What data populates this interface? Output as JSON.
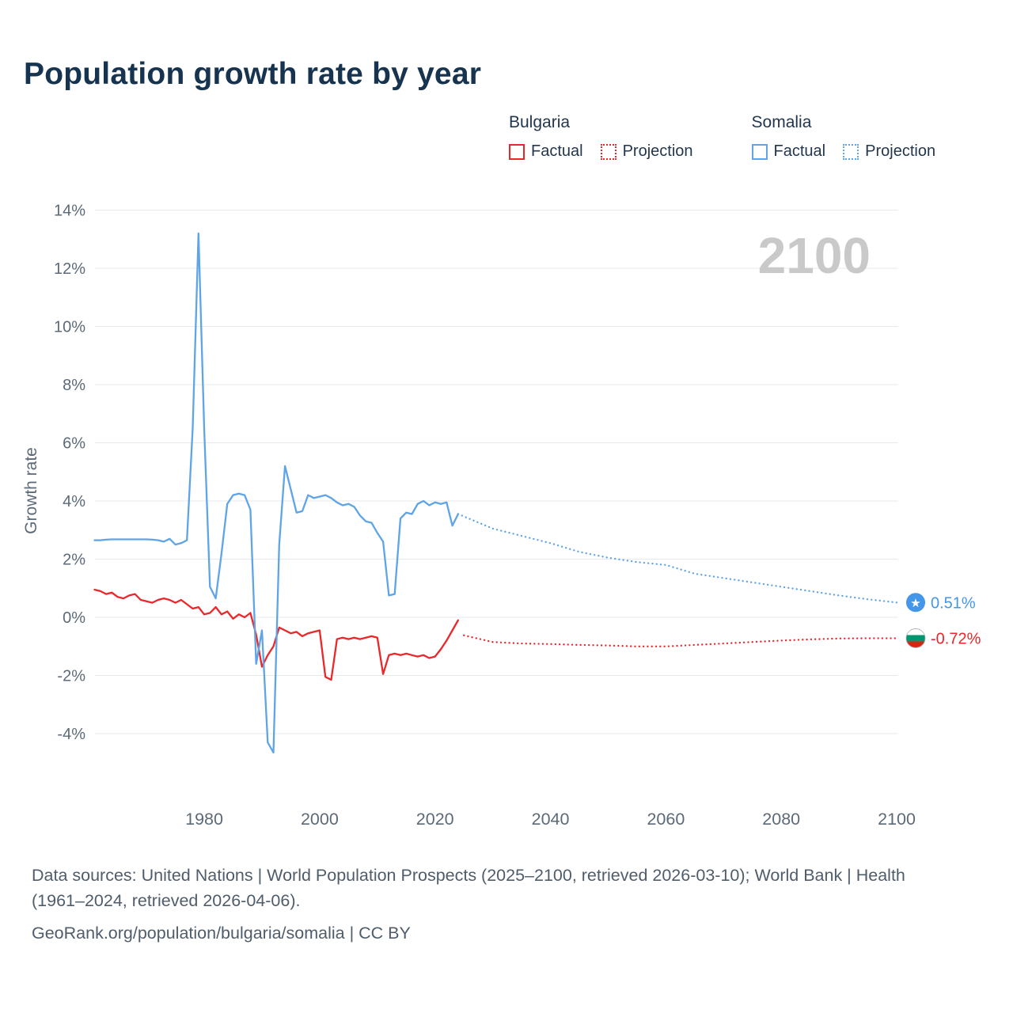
{
  "title": "Population growth rate by year",
  "watermark": "2100",
  "legend": {
    "groups": [
      {
        "label": "Bulgaria",
        "color": "#ea272a",
        "items": [
          {
            "label": "Factual",
            "style": "solid"
          },
          {
            "label": "Projection",
            "style": "dotted"
          }
        ]
      },
      {
        "label": "Somalia",
        "color": "#5ea4e6",
        "items": [
          {
            "label": "Factual",
            "style": "solid"
          },
          {
            "label": "Projection",
            "style": "dotted"
          }
        ]
      }
    ]
  },
  "end_markers": [
    {
      "name": "somalia",
      "label": "0.51%",
      "value": 0.51,
      "label_color": "#4496e8",
      "flag_type": "star",
      "flag_bg": "#4496e8",
      "star_color": "#ffffff"
    },
    {
      "name": "bulgaria",
      "label": "-0.72%",
      "value": -0.72,
      "label_color": "#ea272a",
      "flag_type": "stripes",
      "stripes": [
        "#ffffff",
        "#00966e",
        "#d62612"
      ]
    }
  ],
  "footer": {
    "sources": "Data sources: United Nations | World Population Prospects (2025–2100, retrieved 2026-03-10); World Bank | Health (1961–2024, retrieved 2026-04-06).",
    "attribution": "GeoRank.org/population/bulgaria/somalia | CC BY"
  },
  "chart_data": {
    "type": "line",
    "title": "Population growth rate by year",
    "xlabel": "",
    "ylabel": "Growth rate",
    "xlim": [
      1961,
      2113
    ],
    "ylim": [
      -5.5,
      14.5
    ],
    "grid": "horizontal",
    "legend_position": "top-right",
    "xticks": [
      1980,
      2000,
      2020,
      2040,
      2060,
      2080,
      2100
    ],
    "xtick_labels": [
      "1980",
      "2000",
      "2020",
      "2040",
      "2060",
      "2080",
      "2100"
    ],
    "yticks": [
      -4,
      -2,
      0,
      2,
      4,
      6,
      8,
      10,
      12,
      14
    ],
    "ytick_labels": [
      "-4%",
      "-2%",
      "0%",
      "2%",
      "4%",
      "6%",
      "8%",
      "10%",
      "12%",
      "14%"
    ],
    "series": [
      {
        "name": "Bulgaria Factual",
        "color": "#ea272a",
        "dash": "solid",
        "start_year": 1961,
        "values": [
          0.95,
          0.9,
          0.8,
          0.85,
          0.7,
          0.65,
          0.75,
          0.8,
          0.6,
          0.55,
          0.5,
          0.6,
          0.65,
          0.6,
          0.5,
          0.6,
          0.45,
          0.3,
          0.35,
          0.1,
          0.15,
          0.35,
          0.1,
          0.2,
          -0.05,
          0.1,
          0.0,
          0.15,
          -0.6,
          -1.7,
          -1.3,
          -1.0,
          -0.35,
          -0.45,
          -0.55,
          -0.5,
          -0.65,
          -0.55,
          -0.5,
          -0.45,
          -2.05,
          -2.15,
          -0.75,
          -0.7,
          -0.75,
          -0.7,
          -0.75,
          -0.7,
          -0.65,
          -0.7,
          -1.95,
          -1.3,
          -1.25,
          -1.3,
          -1.25,
          -1.3,
          -1.35,
          -1.3,
          -1.4,
          -1.35,
          -1.1,
          -0.8,
          -0.45,
          -0.1
        ]
      },
      {
        "name": "Bulgaria Projection",
        "color": "#ea272a",
        "dash": "dotted",
        "x": [
          2025,
          2030,
          2035,
          2040,
          2045,
          2050,
          2055,
          2060,
          2065,
          2070,
          2075,
          2080,
          2085,
          2090,
          2095,
          2100
        ],
        "values": [
          -0.62,
          -0.85,
          -0.9,
          -0.92,
          -0.95,
          -0.97,
          -1.0,
          -1.0,
          -0.95,
          -0.9,
          -0.85,
          -0.8,
          -0.76,
          -0.73,
          -0.72,
          -0.72
        ]
      },
      {
        "name": "Somalia Factual",
        "color": "#5ea4e6",
        "dash": "solid",
        "start_year": 1961,
        "values": [
          2.65,
          2.65,
          2.67,
          2.68,
          2.68,
          2.68,
          2.68,
          2.68,
          2.68,
          2.68,
          2.67,
          2.65,
          2.6,
          2.7,
          2.5,
          2.55,
          2.65,
          6.5,
          13.2,
          6.5,
          1.05,
          0.65,
          2.2,
          3.9,
          4.2,
          4.25,
          4.2,
          3.7,
          -1.6,
          -0.45,
          -4.3,
          -4.65,
          2.5,
          5.2,
          4.4,
          3.6,
          3.65,
          4.2,
          4.1,
          4.15,
          4.2,
          4.1,
          3.95,
          3.85,
          3.9,
          3.8,
          3.5,
          3.3,
          3.25,
          2.9,
          2.6,
          0.75,
          0.8,
          3.4,
          3.6,
          3.55,
          3.9,
          4.0,
          3.85,
          3.95,
          3.9,
          3.95,
          3.15,
          3.55
        ]
      },
      {
        "name": "Somalia Projection",
        "color": "#5ea4e6",
        "dash": "dotted",
        "x": [
          2024,
          2030,
          2035,
          2040,
          2045,
          2050,
          2055,
          2060,
          2065,
          2070,
          2075,
          2080,
          2085,
          2090,
          2095,
          2100
        ],
        "values": [
          3.55,
          3.05,
          2.8,
          2.55,
          2.25,
          2.05,
          1.9,
          1.8,
          1.5,
          1.35,
          1.2,
          1.05,
          0.9,
          0.75,
          0.62,
          0.51
        ]
      }
    ]
  }
}
